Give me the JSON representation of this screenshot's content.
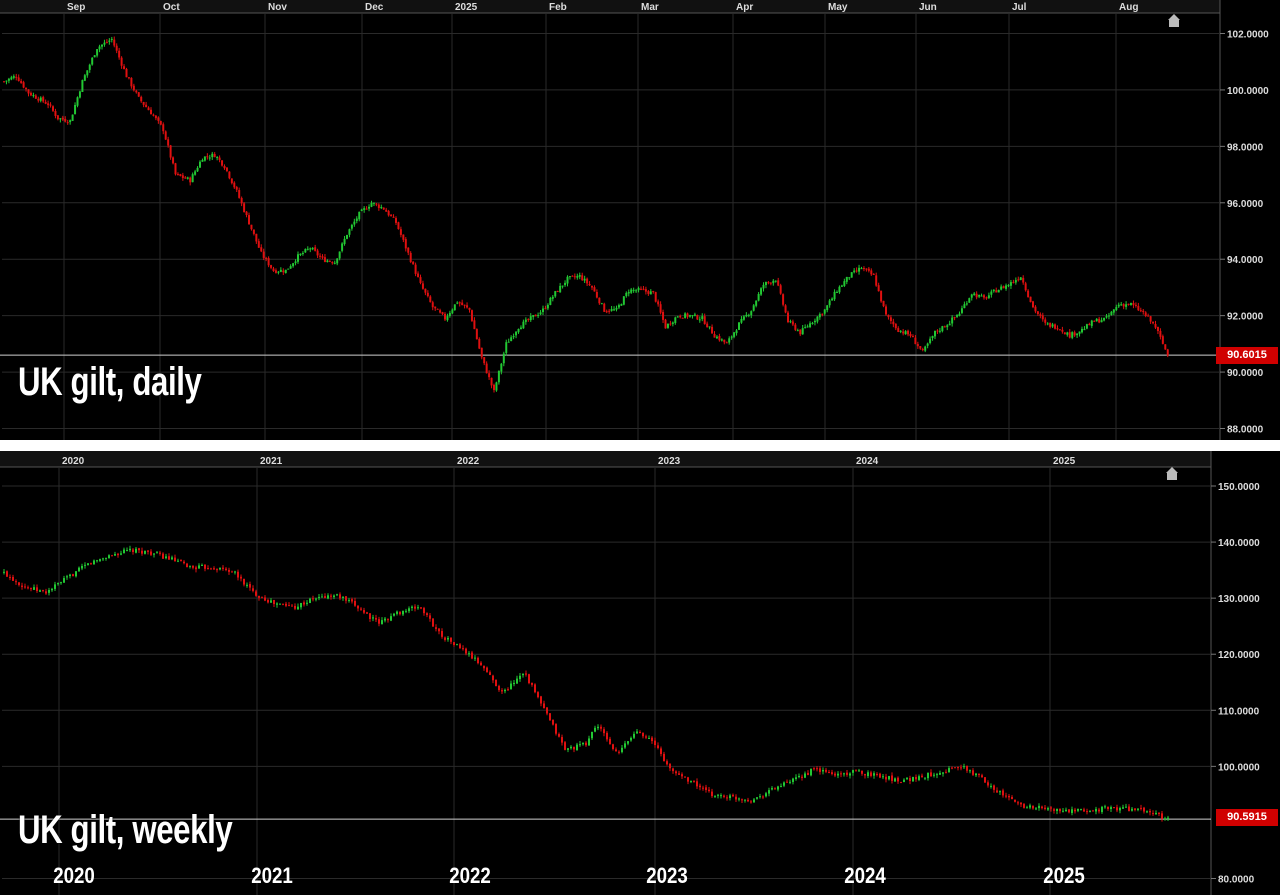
{
  "chart_data": [
    {
      "type": "candlestick",
      "title": "UK gilt, daily",
      "x_labels": [
        "Sep",
        "Oct",
        "Nov",
        "Dec",
        "2025",
        "Feb",
        "Mar",
        "Apr",
        "May",
        "Jun",
        "Jul",
        "Aug"
      ],
      "y_ticks": [
        "102.0000",
        "100.0000",
        "98.0000",
        "96.0000",
        "94.0000",
        "92.0000",
        "90.0000",
        "88.0000"
      ],
      "ylim": [
        87.6,
        103.1
      ],
      "last_price": 90.6015,
      "last_price_label": "90.6015",
      "grid": true,
      "up_color": "#22c833",
      "down_color": "#e01010",
      "path": [
        [
          0,
          100.3
        ],
        [
          5,
          100.5
        ],
        [
          10,
          99.9
        ],
        [
          18,
          99.5
        ],
        [
          22,
          99.0
        ],
        [
          27,
          98.9
        ],
        [
          32,
          100.3
        ],
        [
          38,
          101.5
        ],
        [
          44,
          101.8
        ],
        [
          50,
          100.5
        ],
        [
          55,
          99.7
        ],
        [
          60,
          99.2
        ],
        [
          65,
          98.6
        ],
        [
          70,
          97.0
        ],
        [
          76,
          96.8
        ],
        [
          81,
          97.6
        ],
        [
          86,
          97.7
        ],
        [
          90,
          97.3
        ],
        [
          95,
          96.4
        ],
        [
          100,
          95.3
        ],
        [
          105,
          94.2
        ],
        [
          110,
          93.6
        ],
        [
          115,
          93.6
        ],
        [
          120,
          94.1
        ],
        [
          125,
          94.4
        ],
        [
          130,
          94.0
        ],
        [
          135,
          93.9
        ],
        [
          140,
          94.9
        ],
        [
          145,
          95.6
        ],
        [
          150,
          96.0
        ],
        [
          155,
          95.8
        ],
        [
          160,
          95.3
        ],
        [
          165,
          94.2
        ],
        [
          170,
          93.1
        ],
        [
          175,
          92.3
        ],
        [
          180,
          91.9
        ],
        [
          185,
          92.5
        ],
        [
          190,
          92.2
        ],
        [
          195,
          90.5
        ],
        [
          200,
          89.3
        ],
        [
          205,
          91.0
        ],
        [
          210,
          91.6
        ],
        [
          215,
          91.9
        ],
        [
          220,
          92.2
        ],
        [
          225,
          92.8
        ],
        [
          230,
          93.3
        ],
        [
          235,
          93.4
        ],
        [
          240,
          93.0
        ],
        [
          245,
          92.2
        ],
        [
          250,
          92.2
        ],
        [
          255,
          92.9
        ],
        [
          260,
          92.9
        ],
        [
          265,
          92.8
        ],
        [
          270,
          91.6
        ],
        [
          275,
          92.0
        ],
        [
          280,
          92.0
        ],
        [
          285,
          91.9
        ],
        [
          290,
          91.3
        ],
        [
          295,
          91.0
        ],
        [
          300,
          91.7
        ],
        [
          305,
          92.2
        ],
        [
          310,
          93.1
        ],
        [
          315,
          93.3
        ],
        [
          320,
          91.8
        ],
        [
          325,
          91.4
        ],
        [
          330,
          91.8
        ],
        [
          335,
          92.2
        ],
        [
          340,
          92.9
        ],
        [
          345,
          93.4
        ],
        [
          350,
          93.7
        ],
        [
          355,
          93.4
        ],
        [
          360,
          92.0
        ],
        [
          365,
          91.5
        ],
        [
          370,
          91.3
        ],
        [
          375,
          90.7
        ],
        [
          380,
          91.4
        ],
        [
          385,
          91.7
        ],
        [
          390,
          92.1
        ],
        [
          395,
          92.8
        ],
        [
          400,
          92.6
        ],
        [
          405,
          92.9
        ],
        [
          410,
          93.1
        ],
        [
          415,
          93.4
        ],
        [
          420,
          92.3
        ],
        [
          425,
          91.7
        ],
        [
          430,
          91.6
        ],
        [
          435,
          91.3
        ],
        [
          440,
          91.5
        ],
        [
          445,
          91.8
        ],
        [
          450,
          91.9
        ],
        [
          455,
          92.4
        ],
        [
          460,
          92.4
        ],
        [
          465,
          92.1
        ],
        [
          470,
          91.6
        ],
        [
          475,
          90.6
        ]
      ]
    },
    {
      "type": "candlestick",
      "title": "UK gilt, weekly",
      "x_labels": [
        "2020",
        "2021",
        "2022",
        "2023",
        "2024",
        "2025"
      ],
      "bottom_labels": [
        "2020",
        "2021",
        "2022",
        "2023",
        "2024",
        "2025"
      ],
      "y_ticks": [
        "150.0000",
        "140.0000",
        "130.0000",
        "120.0000",
        "110.0000",
        "100.0000",
        "80.0000"
      ],
      "ylim": [
        79.0,
        152.0
      ],
      "last_price": 90.5915,
      "last_price_label": "90.5915",
      "grid": true,
      "up_color": "#22c833",
      "down_color": "#e01010",
      "path": [
        [
          0,
          134.5
        ],
        [
          10,
          132.0
        ],
        [
          20,
          131.0
        ],
        [
          30,
          133.5
        ],
        [
          40,
          136.0
        ],
        [
          50,
          137.5
        ],
        [
          60,
          138.5
        ],
        [
          70,
          138.2
        ],
        [
          80,
          137.0
        ],
        [
          90,
          135.5
        ],
        [
          100,
          135.5
        ],
        [
          110,
          134.8
        ],
        [
          120,
          131.0
        ],
        [
          130,
          129.0
        ],
        [
          140,
          128.5
        ],
        [
          150,
          130.0
        ],
        [
          160,
          130.5
        ],
        [
          170,
          128.5
        ],
        [
          180,
          125.5
        ],
        [
          190,
          127.5
        ],
        [
          200,
          128.5
        ],
        [
          210,
          123.5
        ],
        [
          220,
          121.0
        ],
        [
          230,
          118.0
        ],
        [
          240,
          113.0
        ],
        [
          250,
          117.0
        ],
        [
          260,
          110.0
        ],
        [
          270,
          103.0
        ],
        [
          280,
          104.0
        ],
        [
          285,
          107.5
        ],
        [
          290,
          105.0
        ],
        [
          295,
          102.0
        ],
        [
          300,
          104.5
        ],
        [
          305,
          106.5
        ],
        [
          310,
          105.0
        ],
        [
          315,
          103.0
        ],
        [
          320,
          99.5
        ],
        [
          330,
          97.5
        ],
        [
          340,
          95.0
        ],
        [
          350,
          94.5
        ],
        [
          360,
          94.0
        ],
        [
          370,
          96.0
        ],
        [
          380,
          97.5
        ],
        [
          390,
          99.5
        ],
        [
          400,
          98.5
        ],
        [
          410,
          99.0
        ],
        [
          420,
          98.5
        ],
        [
          430,
          97.5
        ],
        [
          440,
          98.0
        ],
        [
          450,
          99.0
        ],
        [
          460,
          100.0
        ],
        [
          470,
          98.0
        ],
        [
          480,
          95.0
        ],
        [
          490,
          93.0
        ],
        [
          500,
          92.5
        ],
        [
          510,
          92.0
        ],
        [
          520,
          92.0
        ],
        [
          530,
          92.5
        ],
        [
          540,
          92.5
        ],
        [
          550,
          92.0
        ],
        [
          560,
          90.6
        ]
      ]
    }
  ]
}
